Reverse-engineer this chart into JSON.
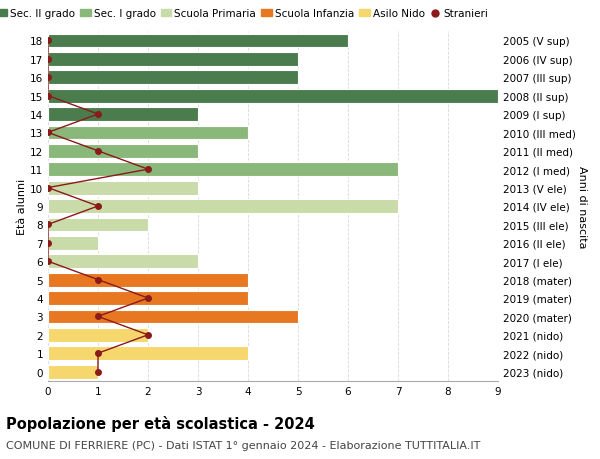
{
  "ages": [
    0,
    1,
    2,
    3,
    4,
    5,
    6,
    7,
    8,
    9,
    10,
    11,
    12,
    13,
    14,
    15,
    16,
    17,
    18
  ],
  "right_labels": [
    "2023 (nido)",
    "2022 (nido)",
    "2021 (nido)",
    "2020 (mater)",
    "2019 (mater)",
    "2018 (mater)",
    "2017 (I ele)",
    "2016 (II ele)",
    "2015 (III ele)",
    "2014 (IV ele)",
    "2013 (V ele)",
    "2012 (I med)",
    "2011 (II med)",
    "2010 (III med)",
    "2009 (I sup)",
    "2008 (II sup)",
    "2007 (III sup)",
    "2006 (IV sup)",
    "2005 (V sup)"
  ],
  "bar_values": [
    1,
    4,
    2,
    5,
    4,
    4,
    3,
    1,
    2,
    7,
    3,
    7,
    3,
    4,
    3,
    9,
    5,
    5,
    6
  ],
  "bar_colors": [
    "#f5d76e",
    "#f5d76e",
    "#f5d76e",
    "#e87722",
    "#e87722",
    "#e87722",
    "#c8dba8",
    "#c8dba8",
    "#c8dba8",
    "#c8dba8",
    "#c8dba8",
    "#8ab87a",
    "#8ab87a",
    "#8ab87a",
    "#4a7c4e",
    "#4a7c4e",
    "#4a7c4e",
    "#4a7c4e",
    "#4a7c4e"
  ],
  "stranieri_x": [
    1,
    1,
    2,
    1,
    2,
    1,
    0,
    0,
    0,
    1,
    0,
    2,
    1,
    0,
    1,
    0,
    0,
    0,
    0
  ],
  "xlim": [
    0,
    9
  ],
  "ylim": [
    -0.5,
    18.5
  ],
  "ylabel": "Età alunni",
  "right_ylabel": "Anni di nascita",
  "title": "Popolazione per età scolastica - 2024",
  "subtitle": "COMUNE DI FERRIERE (PC) - Dati ISTAT 1° gennaio 2024 - Elaborazione TUTTITALIA.IT",
  "legend_labels": [
    "Sec. II grado",
    "Sec. I grado",
    "Scuola Primaria",
    "Scuola Infanzia",
    "Asilo Nido",
    "Stranieri"
  ],
  "legend_colors": [
    "#4a7c4e",
    "#8ab87a",
    "#c8dba8",
    "#e87722",
    "#f5d76e",
    "#9b1c1c"
  ],
  "grid_color": "#d8d8d8",
  "bar_height": 0.75,
  "title_fontsize": 10.5,
  "subtitle_fontsize": 8,
  "axis_label_fontsize": 8,
  "tick_fontsize": 7.5,
  "legend_fontsize": 7.5,
  "stranieri_color": "#8b1a1a",
  "stranieri_line_color": "#8b1a1a",
  "bg_color": "#ffffff"
}
